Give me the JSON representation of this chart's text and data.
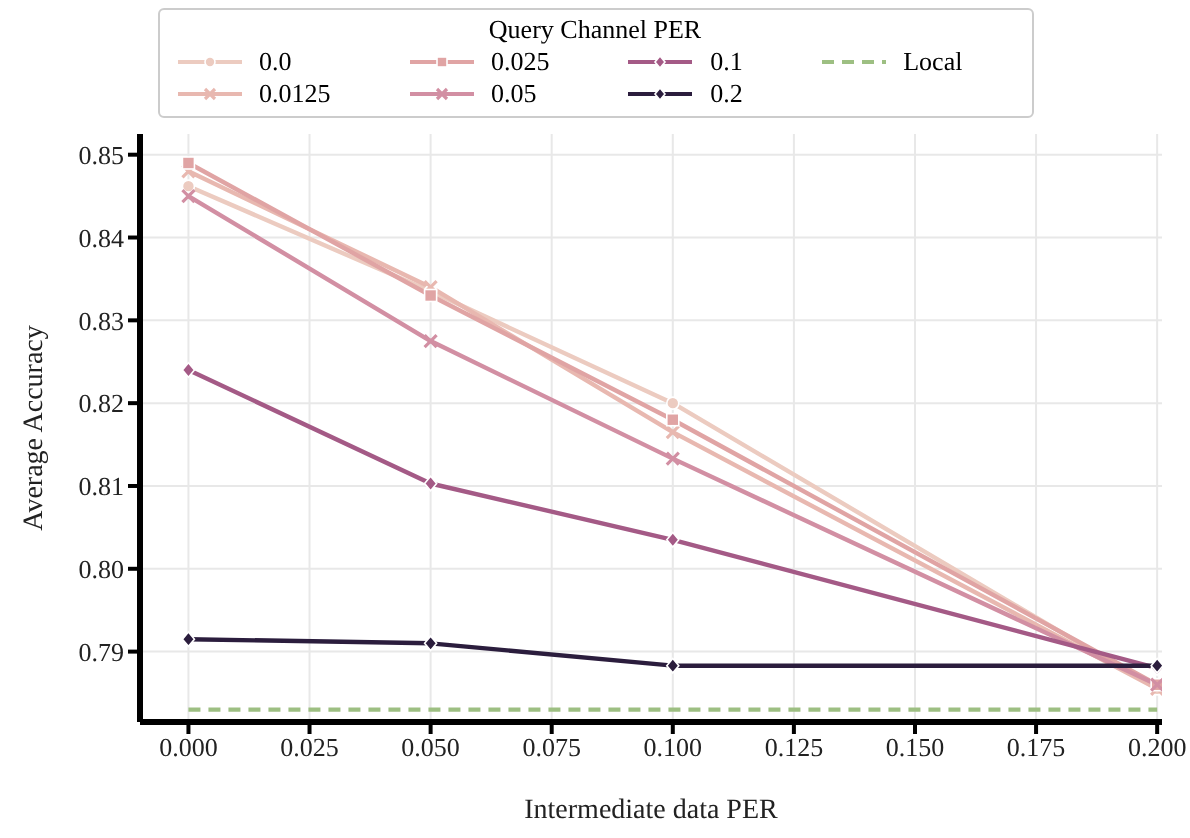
{
  "chart_data": {
    "type": "line",
    "xlabel": "Intermediate data PER",
    "ylabel": "Average Accuracy",
    "legend_title": "Query Channel PER",
    "x": [
      0,
      0.05,
      0.1,
      0.2
    ],
    "xlim": [
      -0.01,
      0.201
    ],
    "xticks": [
      {
        "value": 0,
        "label": "0.000"
      },
      {
        "value": 0.025,
        "label": "0.025"
      },
      {
        "value": 0.05,
        "label": "0.050"
      },
      {
        "value": 0.075,
        "label": "0.075"
      },
      {
        "value": 0.1,
        "label": "0.100"
      },
      {
        "value": 0.125,
        "label": "0.125"
      },
      {
        "value": 0.15,
        "label": "0.150"
      },
      {
        "value": 0.175,
        "label": "0.175"
      },
      {
        "value": 0.2,
        "label": "0.200"
      }
    ],
    "ylim": [
      0.7815,
      0.8525
    ],
    "yticks": [
      {
        "value": 0.79,
        "label": "0.79"
      },
      {
        "value": 0.8,
        "label": "0.80"
      },
      {
        "value": 0.81,
        "label": "0.81"
      },
      {
        "value": 0.82,
        "label": "0.82"
      },
      {
        "value": 0.83,
        "label": "0.83"
      },
      {
        "value": 0.84,
        "label": "0.84"
      },
      {
        "value": 0.85,
        "label": "0.85"
      }
    ],
    "grid": true,
    "legend": "top",
    "series": [
      {
        "name": "0.0",
        "color": "#eccbc0",
        "marker": "circle",
        "values": [
          0.8462,
          0.8335,
          0.82,
          0.7855
        ]
      },
      {
        "name": "0.0125",
        "color": "#e8b8b0",
        "marker": "cross",
        "values": [
          0.848,
          0.834,
          0.8165,
          0.7855
        ]
      },
      {
        "name": "0.025",
        "color": "#e0a4a4",
        "marker": "square",
        "values": [
          0.849,
          0.833,
          0.818,
          0.786
        ]
      },
      {
        "name": "0.05",
        "color": "#d28fa3",
        "marker": "cross",
        "values": [
          0.845,
          0.8275,
          0.8133,
          0.786
        ]
      },
      {
        "name": "0.1",
        "color": "#a45a86",
        "marker": "diamond",
        "values": [
          0.824,
          0.8103,
          0.8035,
          0.788
        ]
      },
      {
        "name": "0.2",
        "color": "#2b1d3d",
        "marker": "diamond",
        "values": [
          0.7915,
          0.791,
          0.7883,
          0.7883
        ]
      },
      {
        "name": "Local",
        "color": "#9dbf82",
        "marker": "none",
        "line_style": "dashed",
        "values": [
          0.783,
          0.783,
          0.783,
          0.783
        ]
      }
    ]
  }
}
